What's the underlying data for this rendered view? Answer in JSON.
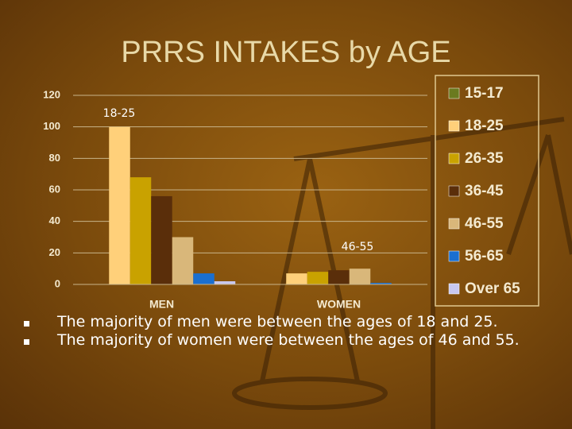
{
  "chart_data": {
    "type": "bar",
    "title": "PRRS INTAKES by AGE",
    "categories": [
      "MEN",
      "WOMEN"
    ],
    "series": [
      {
        "name": "15-17",
        "color": "#6b7a1f",
        "values": [
          0,
          0
        ]
      },
      {
        "name": "18-25",
        "color": "#ffd07a",
        "values": [
          100,
          7
        ]
      },
      {
        "name": "26-35",
        "color": "#c9a200",
        "values": [
          68,
          8
        ]
      },
      {
        "name": "36-45",
        "color": "#5a2e0a",
        "values": [
          56,
          9
        ]
      },
      {
        "name": "46-55",
        "color": "#d9b77a",
        "values": [
          30,
          10
        ]
      },
      {
        "name": "56-65",
        "color": "#1a6fd0",
        "values": [
          7,
          1
        ]
      },
      {
        "name": "Over 65",
        "color": "#c8c8f0",
        "values": [
          2,
          0
        ]
      }
    ],
    "ylim": [
      0,
      120
    ],
    "yticks": [
      0,
      20,
      40,
      60,
      80,
      100,
      120
    ],
    "grid": true,
    "legend": "right",
    "annotations": [
      "18-25",
      "46-55"
    ]
  },
  "bullets": [
    "The majority of men were between the ages of 18 and 25.",
    "The majority of women were between the ages of 46 and 55."
  ]
}
